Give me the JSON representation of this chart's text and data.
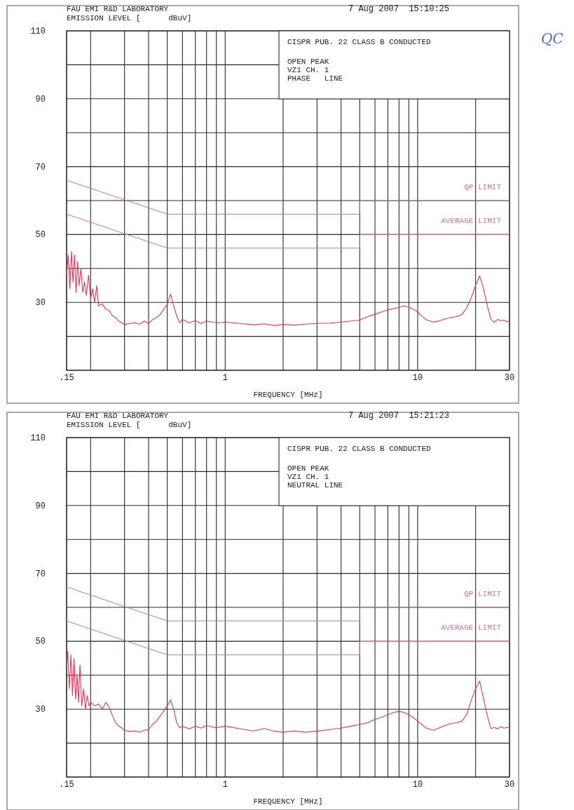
{
  "chart_data": [
    {
      "type": "line",
      "title": "FAU EMI R&D LABORATORY",
      "ylabel": "EMISSION LEVEL [      dBuV]",
      "xlabel": "FREQUENCY [MHz]",
      "log": "x",
      "grid": true,
      "xlim": [
        0.15,
        30
      ],
      "ylim": [
        10,
        110
      ],
      "xticks": [
        {
          "value": 0.15,
          "label": ".15"
        },
        {
          "value": 0.2,
          "label": null
        },
        {
          "value": 0.3,
          "label": null
        },
        {
          "value": 0.4,
          "label": null
        },
        {
          "value": 0.5,
          "label": null
        },
        {
          "value": 0.6,
          "label": null
        },
        {
          "value": 0.7,
          "label": null
        },
        {
          "value": 0.8,
          "label": null
        },
        {
          "value": 0.9,
          "label": null
        },
        1,
        {
          "value": 2,
          "label": null
        },
        {
          "value": 3,
          "label": null
        },
        {
          "value": 4,
          "label": null
        },
        {
          "value": 5,
          "label": null
        },
        {
          "value": 6,
          "label": null
        },
        {
          "value": 7,
          "label": null
        },
        {
          "value": 8,
          "label": null
        },
        {
          "value": 9,
          "label": null
        },
        10,
        {
          "value": 20,
          "label": null
        },
        30
      ],
      "yticks": [
        {
          "value": 10,
          "label": null
        },
        {
          "value": 20,
          "label": null
        },
        30,
        {
          "value": 40,
          "label": null
        },
        50,
        {
          "value": 60,
          "label": null
        },
        70,
        {
          "value": 80,
          "label": null
        },
        90,
        {
          "value": 100,
          "label": null
        },
        110
      ],
      "annotations": [
        "7 Aug 2007  15:10:25",
        "CISPR PUB. 22 CLASS B CONDUCTED",
        "OPEN PEAK",
        "VZ1 CH. 1",
        "PHASE   LINE",
        "QC"
      ],
      "series": [
        {
          "name": "QP LIMIT",
          "color": "#d8709c",
          "x": [
            0.15,
            0.5,
            5,
            5,
            30
          ],
          "values": [
            66,
            56,
            56,
            60,
            60
          ]
        },
        {
          "name": "AVERAGE LIMIT",
          "color": "#d8709c",
          "x": [
            0.15,
            0.5,
            5,
            5,
            30
          ],
          "values": [
            56,
            46,
            46,
            50,
            50
          ]
        },
        {
          "color": "#e8365a",
          "x": [
            0.15,
            0.153,
            0.156,
            0.159,
            0.162,
            0.165,
            0.168,
            0.171,
            0.174,
            0.178,
            0.182,
            0.186,
            0.19,
            0.195,
            0.2,
            0.205,
            0.21,
            0.215,
            0.22,
            0.23,
            0.24,
            0.25,
            0.26,
            0.27,
            0.28,
            0.29,
            0.3,
            0.32,
            0.34,
            0.36,
            0.38,
            0.4,
            0.42,
            0.44,
            0.46,
            0.48,
            0.5,
            0.52,
            0.54,
            0.56,
            0.58,
            0.6,
            0.65,
            0.7,
            0.75,
            0.8,
            0.9,
            1,
            1.2,
            1.4,
            1.6,
            1.8,
            2,
            2.3,
            2.6,
            3,
            3.5,
            4,
            4.5,
            5,
            5.5,
            6,
            6.5,
            7,
            7.5,
            8,
            8.5,
            9,
            9.5,
            10,
            10.5,
            11,
            12,
            13,
            14,
            15,
            16,
            17,
            18,
            19,
            20,
            21,
            22,
            23,
            24,
            25,
            26,
            27,
            28,
            29,
            30
          ],
          "values": [
            38,
            44,
            34,
            45,
            36,
            44,
            33,
            42,
            35,
            40,
            33,
            36,
            32,
            38,
            31,
            34,
            30,
            35,
            29,
            29.5,
            28,
            27.5,
            26,
            25.5,
            24.5,
            24,
            23.5,
            23.8,
            24,
            23.6,
            24.5,
            23.8,
            25,
            25.5,
            26.5,
            28,
            29.5,
            32.5,
            29,
            26,
            24,
            25,
            24,
            24.6,
            23.8,
            24.5,
            24,
            24.2,
            23.8,
            23.4,
            23.7,
            23.2,
            23.5,
            23.3,
            23.6,
            23.8,
            23.9,
            24.2,
            24.5,
            24.8,
            25.8,
            26.5,
            27.2,
            27.8,
            28.2,
            28.5,
            29,
            28.6,
            28,
            27.2,
            26,
            25,
            24.2,
            24.6,
            25.2,
            25.6,
            25.8,
            26.5,
            28.5,
            31.5,
            35,
            37.8,
            34,
            29,
            25,
            24.2,
            25,
            24.6,
            24.8,
            24.3,
            24.5
          ]
        }
      ]
    },
    {
      "type": "line",
      "title": "FAU EMI R&D LABORATORY",
      "ylabel": "EMISSION LEVEL [      dBuV]",
      "xlabel": "FREQUENCY [MHz]",
      "log": "x",
      "grid": true,
      "xlim": [
        0.15,
        30
      ],
      "ylim": [
        10,
        110
      ],
      "xticks": [
        {
          "value": 0.15,
          "label": ".15"
        },
        {
          "value": 0.2,
          "label": null
        },
        {
          "value": 0.3,
          "label": null
        },
        {
          "value": 0.4,
          "label": null
        },
        {
          "value": 0.5,
          "label": null
        },
        {
          "value": 0.6,
          "label": null
        },
        {
          "value": 0.7,
          "label": null
        },
        {
          "value": 0.8,
          "label": null
        },
        {
          "value": 0.9,
          "label": null
        },
        1,
        {
          "value": 2,
          "label": null
        },
        {
          "value": 3,
          "label": null
        },
        {
          "value": 4,
          "label": null
        },
        {
          "value": 5,
          "label": null
        },
        {
          "value": 6,
          "label": null
        },
        {
          "value": 7,
          "label": null
        },
        {
          "value": 8,
          "label": null
        },
        {
          "value": 9,
          "label": null
        },
        10,
        {
          "value": 20,
          "label": null
        },
        30
      ],
      "yticks": [
        {
          "value": 10,
          "label": null
        },
        {
          "value": 20,
          "label": null
        },
        30,
        {
          "value": 40,
          "label": null
        },
        50,
        {
          "value": 60,
          "label": null
        },
        70,
        {
          "value": 80,
          "label": null
        },
        90,
        {
          "value": 100,
          "label": null
        },
        110
      ],
      "annotations": [
        "7 Aug 2007  15:21:23",
        "CISPR PUB. 22 CLASS B CONDUCTED",
        "OPEN PEAK",
        "VZ1 CH. 1",
        "NEUTRAL LINE"
      ],
      "series": [
        {
          "name": "QP LIMIT",
          "color": "#d8709c",
          "x": [
            0.15,
            0.5,
            5,
            5,
            30
          ],
          "values": [
            66,
            56,
            56,
            60,
            60
          ]
        },
        {
          "name": "AVERAGE LIMIT",
          "color": "#d8709c",
          "x": [
            0.15,
            0.5,
            5,
            5,
            30
          ],
          "values": [
            56,
            46,
            46,
            50,
            50
          ]
        },
        {
          "color": "#e8365a",
          "x": [
            0.15,
            0.152,
            0.155,
            0.158,
            0.161,
            0.164,
            0.167,
            0.17,
            0.173,
            0.176,
            0.18,
            0.184,
            0.188,
            0.192,
            0.196,
            0.2,
            0.21,
            0.22,
            0.23,
            0.24,
            0.25,
            0.26,
            0.27,
            0.28,
            0.29,
            0.3,
            0.32,
            0.34,
            0.36,
            0.38,
            0.4,
            0.42,
            0.44,
            0.46,
            0.48,
            0.5,
            0.52,
            0.54,
            0.56,
            0.58,
            0.6,
            0.65,
            0.7,
            0.75,
            0.8,
            0.9,
            1,
            1.2,
            1.4,
            1.6,
            1.8,
            2,
            2.3,
            2.6,
            3,
            3.5,
            4,
            4.5,
            5,
            5.5,
            6,
            6.5,
            7,
            7.5,
            8,
            8.5,
            9,
            9.5,
            10,
            10.5,
            11,
            12,
            13,
            14,
            15,
            16,
            17,
            18,
            19,
            20,
            21,
            22,
            23,
            24,
            25,
            26,
            27,
            28,
            29,
            30
          ],
          "values": [
            42,
            47,
            36,
            46,
            34,
            45,
            33,
            40,
            32,
            43,
            31,
            36,
            30,
            34,
            31,
            32,
            31,
            31.5,
            30,
            32,
            30.5,
            28,
            26,
            25,
            24.5,
            23.8,
            23.4,
            23.6,
            23.2,
            23.8,
            24,
            25.5,
            26.5,
            28,
            29.5,
            31,
            32.7,
            30,
            26,
            24.5,
            25,
            24.2,
            25,
            24.4,
            25.2,
            24.5,
            25,
            24.2,
            23.6,
            24.3,
            23.5,
            23.2,
            23.6,
            23.2,
            23.5,
            24,
            24.4,
            25,
            25.5,
            26,
            27,
            27.6,
            28.4,
            29,
            29.4,
            29,
            28.4,
            27.5,
            26.5,
            25.5,
            24.5,
            23.8,
            24.5,
            25.3,
            25.8,
            26,
            26.5,
            28.5,
            32.7,
            36,
            38.3,
            33,
            28,
            24.3,
            24.6,
            24.2,
            24.8,
            24.4,
            24.6,
            24.5
          ]
        }
      ]
    }
  ]
}
